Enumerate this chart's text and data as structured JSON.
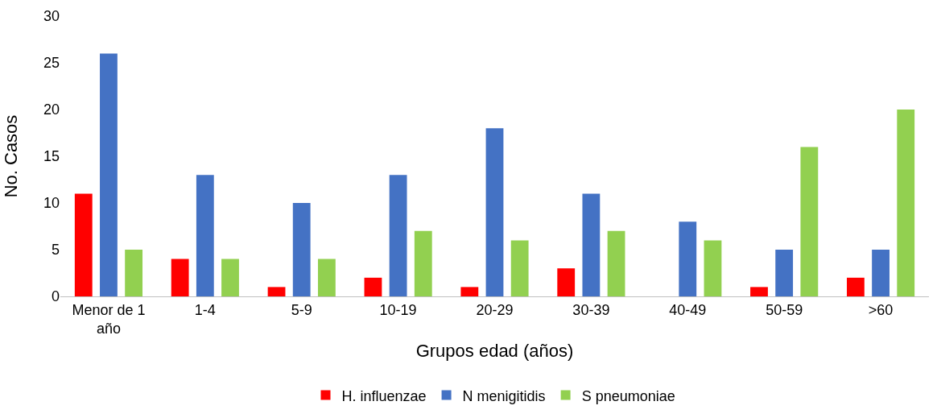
{
  "chart_data": {
    "type": "bar",
    "xlabel": "Grupos edad (años)",
    "ylabel": "No. Casos",
    "categories": [
      "Menor de 1 año",
      "1-4",
      "5-9",
      "10-19",
      "20-29",
      "30-39",
      "40-49",
      "50-59",
      ">60"
    ],
    "series": [
      {
        "name": "H. influenzae",
        "color": "#ff0000",
        "values": [
          11,
          4,
          1,
          2,
          1,
          3,
          0,
          1,
          2
        ]
      },
      {
        "name": "N menigitidis",
        "color": "#4472c4",
        "values": [
          26,
          13,
          10,
          13,
          18,
          11,
          8,
          5,
          5
        ]
      },
      {
        "name": "S pneumoniae",
        "color": "#92d050",
        "values": [
          5,
          4,
          4,
          7,
          6,
          7,
          6,
          16,
          20
        ]
      }
    ],
    "ylim": [
      0,
      30
    ],
    "yticks": [
      0,
      5,
      10,
      15,
      20,
      25,
      30
    ],
    "grid": false,
    "legend": "bottom"
  }
}
